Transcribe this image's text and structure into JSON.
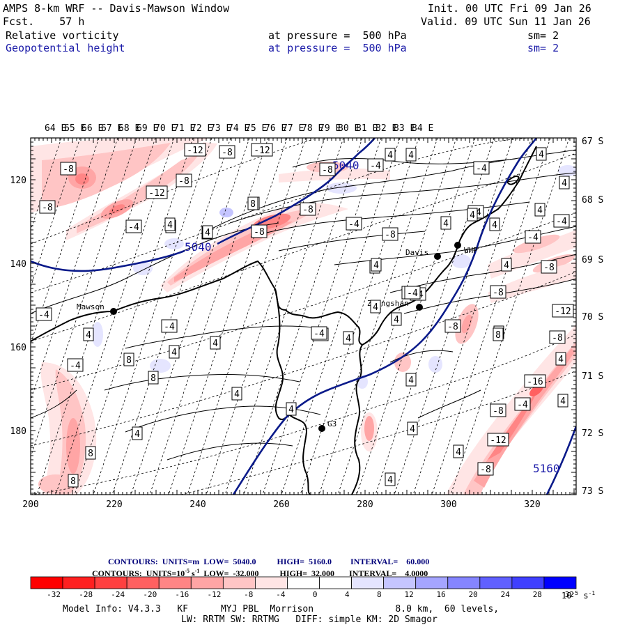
{
  "header": {
    "title": "AMPS 8-km WRF -- Davis-Mawson Window",
    "fcst": "Fcst.    57 h",
    "init": "Init. 00 UTC Fri 09 Jan 26",
    "valid": "Valid. 09 UTC Sun 11 Jan 26",
    "field1": {
      "name": "Relative vorticity",
      "level": "at pressure =  500 hPa",
      "sm": "sm= 2"
    },
    "field2": {
      "name": "Geopotential height",
      "level": "at pressure =  500 hPa",
      "sm": "sm= 2"
    }
  },
  "axes": {
    "lon_labels": [
      "64 E",
      "65 E",
      "66 E",
      "67 E",
      "68 E",
      "69 E",
      "70 E",
      "71 E",
      "72 E",
      "73 E",
      "74 E",
      "75 E",
      "76 E",
      "77 E",
      "78 E",
      "79 E",
      "80 E",
      "81 E",
      "82 E",
      "83 E",
      "84 E"
    ],
    "lat_labels": [
      "67 S",
      "68 S",
      "69 S",
      "70 S",
      "71 S",
      "72 S",
      "73 S"
    ],
    "x_ticks": [
      "200",
      "220",
      "240",
      "260",
      "280",
      "300",
      "320"
    ],
    "y_ticks": [
      "120",
      "140",
      "160",
      "180"
    ]
  },
  "stations": [
    "Davis",
    "WHP",
    "Mawson",
    "Zhongshan",
    "G3"
  ],
  "height_labels": [
    "5040",
    "5040",
    "5160"
  ],
  "vort_labels": [
    "-12",
    "-8",
    "-12",
    "-8",
    "-8",
    "-12",
    "-8",
    "-4",
    "-4",
    "-8",
    "-4",
    "-4",
    "-8",
    "-4",
    "-8",
    "-8",
    "-4",
    "-4",
    "-8",
    "-8",
    "-12",
    "-8",
    "-8",
    "-4",
    "-8",
    "-4",
    "-8",
    "-16",
    "-8",
    "-12",
    "-8",
    "4",
    "4",
    "4",
    "4",
    "4",
    "4",
    "4",
    "4",
    "4",
    "4",
    "4",
    "4",
    "4",
    "4",
    "4",
    "4",
    "4",
    "4",
    "4",
    "4",
    "4",
    "4",
    "4",
    "4",
    "4",
    "4",
    "4",
    "4",
    "8",
    "8",
    "8",
    "8",
    "8",
    "8",
    "4",
    "4",
    "4",
    "4",
    "-4",
    "-4",
    "-4",
    "-4",
    "-4"
  ],
  "legend": {
    "contours1": "CONTOURS:  UNITS=m  LOW=  5040.0          HIGH=  5160.0         INTERVAL=    60.000",
    "contours2": "CONTOURS:  UNITS=10",
    "contours2b": "-5",
    "contours2c": " s",
    "contours2d": "-1",
    "contours2e": "  LOW=  -32.000          HIGH=  32.000       INTERVAL=    4.0000",
    "ticks": [
      "-32",
      "-28",
      "-24",
      "-20",
      "-16",
      "-12",
      "-8",
      "-4",
      "0",
      "4",
      "8",
      "12",
      "16",
      "20",
      "24",
      "28",
      "32"
    ],
    "unit": "10",
    "unit_exp": "-5",
    "unit_s": " s",
    "unit_s_exp": "-1",
    "colors": [
      "#ff0000",
      "#ff2020",
      "#ff4040",
      "#ff6060",
      "#ff8585",
      "#ffa5a5",
      "#ffc5c5",
      "#ffe5e5",
      "#ffffff",
      "#ffffff",
      "#e5e5ff",
      "#c5c5ff",
      "#a5a5ff",
      "#8585ff",
      "#6060ff",
      "#4040ff",
      "#0000ff"
    ]
  },
  "footer": {
    "line1": "Model Info: V4.3.3   KF      MYJ PBL  Morrison               8.0 km,  60 levels,",
    "line2": "LW: RRTM SW: RRTMG   DIFF: simple KM: 2D Smagor"
  }
}
